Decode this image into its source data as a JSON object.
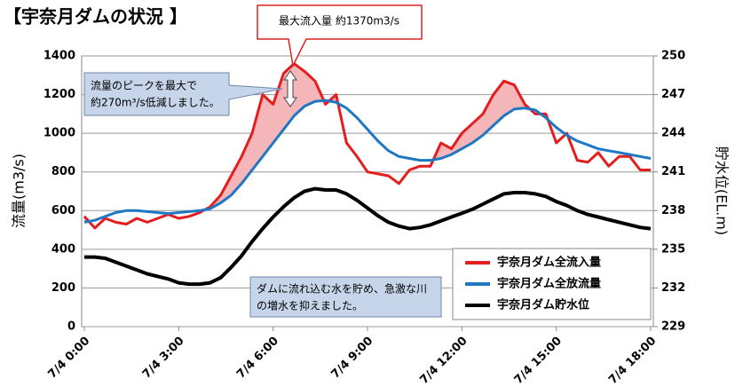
{
  "chart_data": {
    "type": "line",
    "title": "【宇奈月ダムの状況 】",
    "y_label": "流量(m3/s)",
    "y2_label": "貯水位(EL.m)",
    "annotations": [
      {
        "lines": [
          "最大流入量 約1370m3/s"
        ]
      },
      {
        "lines": [
          "流量のピークを最大で",
          "約270m³/s低減しました。"
        ]
      },
      {
        "lines": [
          "ダムに流れ込む水を貯め、急激な川",
          "の増水を抑えました。"
        ]
      }
    ],
    "x": [
      "7/4 0:00",
      "7/4 0:20",
      "7/4 0:40",
      "7/4 1:00",
      "7/4 1:20",
      "7/4 1:40",
      "7/4 2:00",
      "7/4 2:20",
      "7/4 2:40",
      "7/4 3:00",
      "7/4 3:20",
      "7/4 3:40",
      "7/4 4:00",
      "7/4 4:20",
      "7/4 4:40",
      "7/4 5:00",
      "7/4 5:20",
      "7/4 5:40",
      "7/4 6:00",
      "7/4 6:20",
      "7/4 6:40",
      "7/4 7:00",
      "7/4 7:20",
      "7/4 7:40",
      "7/4 8:00",
      "7/4 8:20",
      "7/4 8:40",
      "7/4 9:00",
      "7/4 9:20",
      "7/4 9:40",
      "7/4 10:00",
      "7/4 10:20",
      "7/4 10:40",
      "7/4 11:00",
      "7/4 11:20",
      "7/4 11:40",
      "7/4 12:00",
      "7/4 12:20",
      "7/4 12:40",
      "7/4 13:00",
      "7/4 13:20",
      "7/4 13:40",
      "7/4 14:00",
      "7/4 14:20",
      "7/4 14:40",
      "7/4 15:00",
      "7/4 15:20",
      "7/4 15:40",
      "7/4 16:00",
      "7/4 16:20",
      "7/4 16:40",
      "7/4 17:00",
      "7/4 17:20",
      "7/4 17:40",
      "7/4 18:00"
    ],
    "xticks": [
      "7/4 0:00",
      "7/4 3:00",
      "7/4 6:00",
      "7/4 9:00",
      "7/4 12:00",
      "7/4 15:00",
      "7/4 18:00"
    ],
    "ylim": [
      0,
      1400
    ],
    "yticks": [
      0,
      200,
      400,
      600,
      800,
      1000,
      1200,
      1400
    ],
    "y2lim": [
      229,
      250
    ],
    "y2ticks": [
      229,
      232,
      235,
      238,
      241,
      244,
      247,
      250
    ],
    "grid": true,
    "legend": "lower right",
    "fill_color": "#f4b6b8",
    "series": [
      {
        "name": "宇奈月ダム全流入量",
        "color": "#e41e1e",
        "values": [
          570,
          510,
          560,
          540,
          530,
          560,
          540,
          560,
          580,
          560,
          570,
          590,
          620,
          680,
          780,
          880,
          1000,
          1200,
          1150,
          1310,
          1360,
          1320,
          1270,
          1150,
          1200,
          950,
          880,
          800,
          790,
          780,
          740,
          810,
          830,
          830,
          950,
          920,
          1000,
          1050,
          1100,
          1200,
          1270,
          1250,
          1150,
          1100,
          1100,
          950,
          1000,
          860,
          850,
          900,
          830,
          880,
          880,
          810,
          810
        ]
      },
      {
        "name": "宇奈月ダム全放流量",
        "color": "#1f77c4",
        "values": [
          540,
          550,
          570,
          590,
          600,
          600,
          595,
          590,
          585,
          590,
          595,
          600,
          610,
          640,
          680,
          740,
          810,
          880,
          950,
          1020,
          1090,
          1140,
          1165,
          1170,
          1160,
          1130,
          1080,
          1020,
          960,
          910,
          880,
          870,
          860,
          860,
          870,
          890,
          920,
          950,
          990,
          1040,
          1090,
          1125,
          1130,
          1120,
          1080,
          1030,
          990,
          960,
          940,
          920,
          910,
          900,
          890,
          880,
          870
        ]
      },
      {
        "name": "宇奈月ダム貯水位",
        "color": "#000000",
        "axis": "y2",
        "values": [
          234.4,
          234.4,
          234.3,
          234.0,
          233.7,
          233.4,
          233.1,
          232.9,
          232.7,
          232.4,
          232.3,
          232.3,
          232.4,
          232.8,
          233.6,
          234.5,
          235.6,
          236.6,
          237.5,
          238.3,
          239.0,
          239.5,
          239.7,
          239.6,
          239.6,
          239.3,
          238.8,
          238.2,
          237.6,
          237.1,
          236.8,
          236.6,
          236.7,
          236.9,
          237.2,
          237.5,
          237.8,
          238.1,
          238.5,
          238.9,
          239.3,
          239.4,
          239.4,
          239.3,
          239.1,
          238.7,
          238.4,
          238.0,
          237.7,
          237.5,
          237.3,
          237.1,
          236.9,
          236.7,
          236.6
        ]
      }
    ]
  }
}
